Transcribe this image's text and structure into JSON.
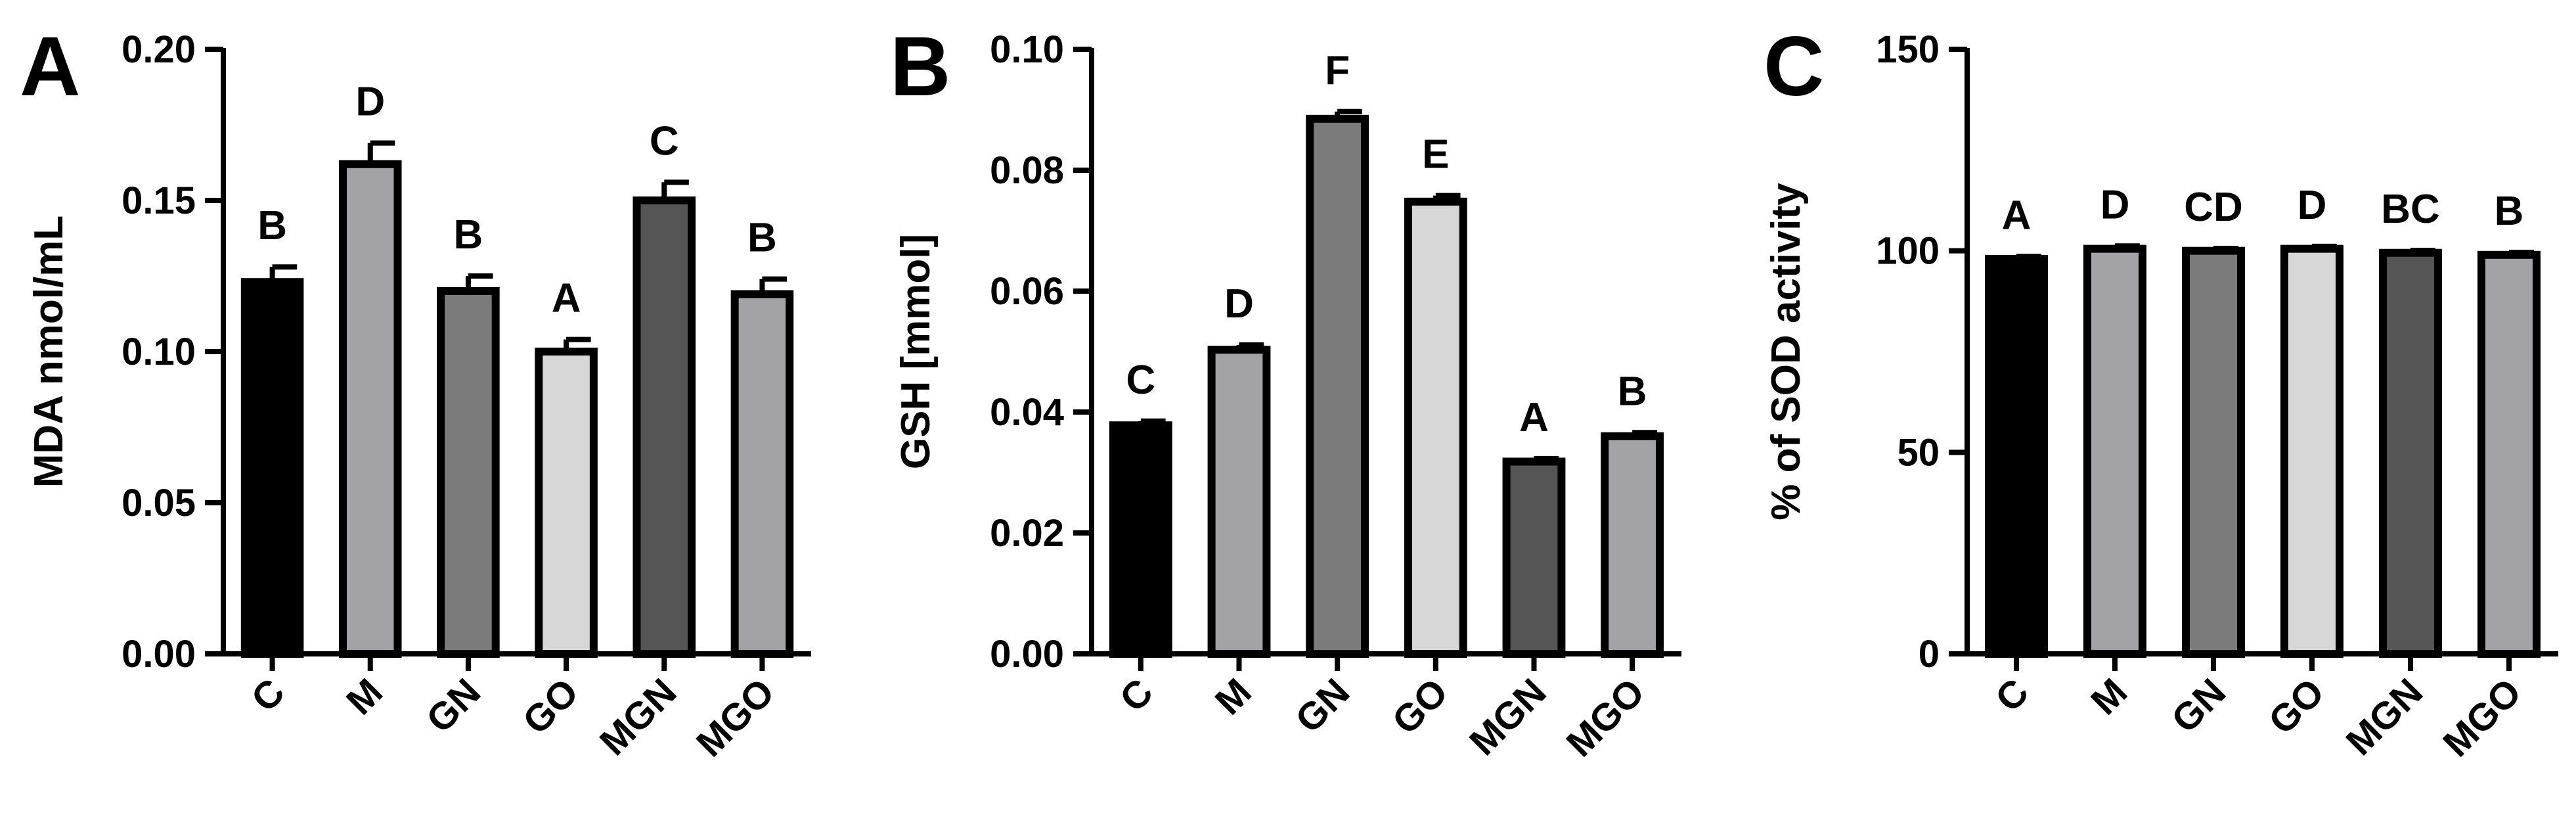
{
  "chart_data": [
    {
      "type": "bar",
      "panel_label": "A",
      "categories": [
        "C",
        "M",
        "GN",
        "GO",
        "MGN",
        "MGO"
      ],
      "values": [
        0.123,
        0.162,
        0.12,
        0.1,
        0.15,
        0.119
      ],
      "errors": [
        0.005,
        0.007,
        0.005,
        0.004,
        0.006,
        0.005
      ],
      "letters": [
        "B",
        "D",
        "B",
        "A",
        "C",
        "B"
      ],
      "colors": [
        "#000000",
        "#a3a2a6",
        "#7b7b7b",
        "#d7d7d7",
        "#555555",
        "#a3a2a6"
      ],
      "ylabel": "MDA nmol/mL",
      "xlabel": "",
      "ylim": [
        0,
        0.2
      ],
      "yticks": [
        0,
        0.05,
        0.1,
        0.15,
        0.2
      ],
      "ytick_labels": [
        "0.00",
        "0.05",
        "0.10",
        "0.15",
        "0.20"
      ]
    },
    {
      "type": "bar",
      "panel_label": "B",
      "categories": [
        "C",
        "M",
        "GN",
        "GO",
        "MGN",
        "MGO"
      ],
      "values": [
        0.0378,
        0.0503,
        0.0885,
        0.0748,
        0.0318,
        0.036
      ],
      "errors": [
        0.0007,
        0.0008,
        0.0012,
        0.001,
        0.0005,
        0.0006
      ],
      "letters": [
        "C",
        "D",
        "F",
        "E",
        "A",
        "B"
      ],
      "colors": [
        "#000000",
        "#a3a2a6",
        "#7b7b7b",
        "#d7d7d7",
        "#555555",
        "#a3a2a6"
      ],
      "ylabel": "GSH [mmol]",
      "xlabel": "",
      "ylim": [
        0,
        0.1
      ],
      "yticks": [
        0,
        0.02,
        0.04,
        0.06,
        0.08,
        0.1
      ],
      "ytick_labels": [
        "0.00",
        "0.02",
        "0.04",
        "0.06",
        "0.08",
        "0.10"
      ]
    },
    {
      "type": "bar",
      "panel_label": "C",
      "categories": [
        "C",
        "M",
        "GN",
        "GO",
        "MGN",
        "MGO"
      ],
      "values": [
        98,
        100.5,
        100,
        100.5,
        99.5,
        99
      ],
      "errors": [
        0.6,
        0.7,
        0.6,
        0.6,
        0.6,
        0.6
      ],
      "letters": [
        "A",
        "D",
        "CD",
        "D",
        "BC",
        "B"
      ],
      "colors": [
        "#000000",
        "#a3a2a6",
        "#7b7b7b",
        "#d7d7d7",
        "#555555",
        "#a3a2a6"
      ],
      "ylabel": "% of SOD activity",
      "xlabel": "",
      "ylim": [
        0,
        150
      ],
      "yticks": [
        0,
        50,
        100,
        150
      ],
      "ytick_labels": [
        "0",
        "50",
        "100",
        "150"
      ]
    }
  ]
}
